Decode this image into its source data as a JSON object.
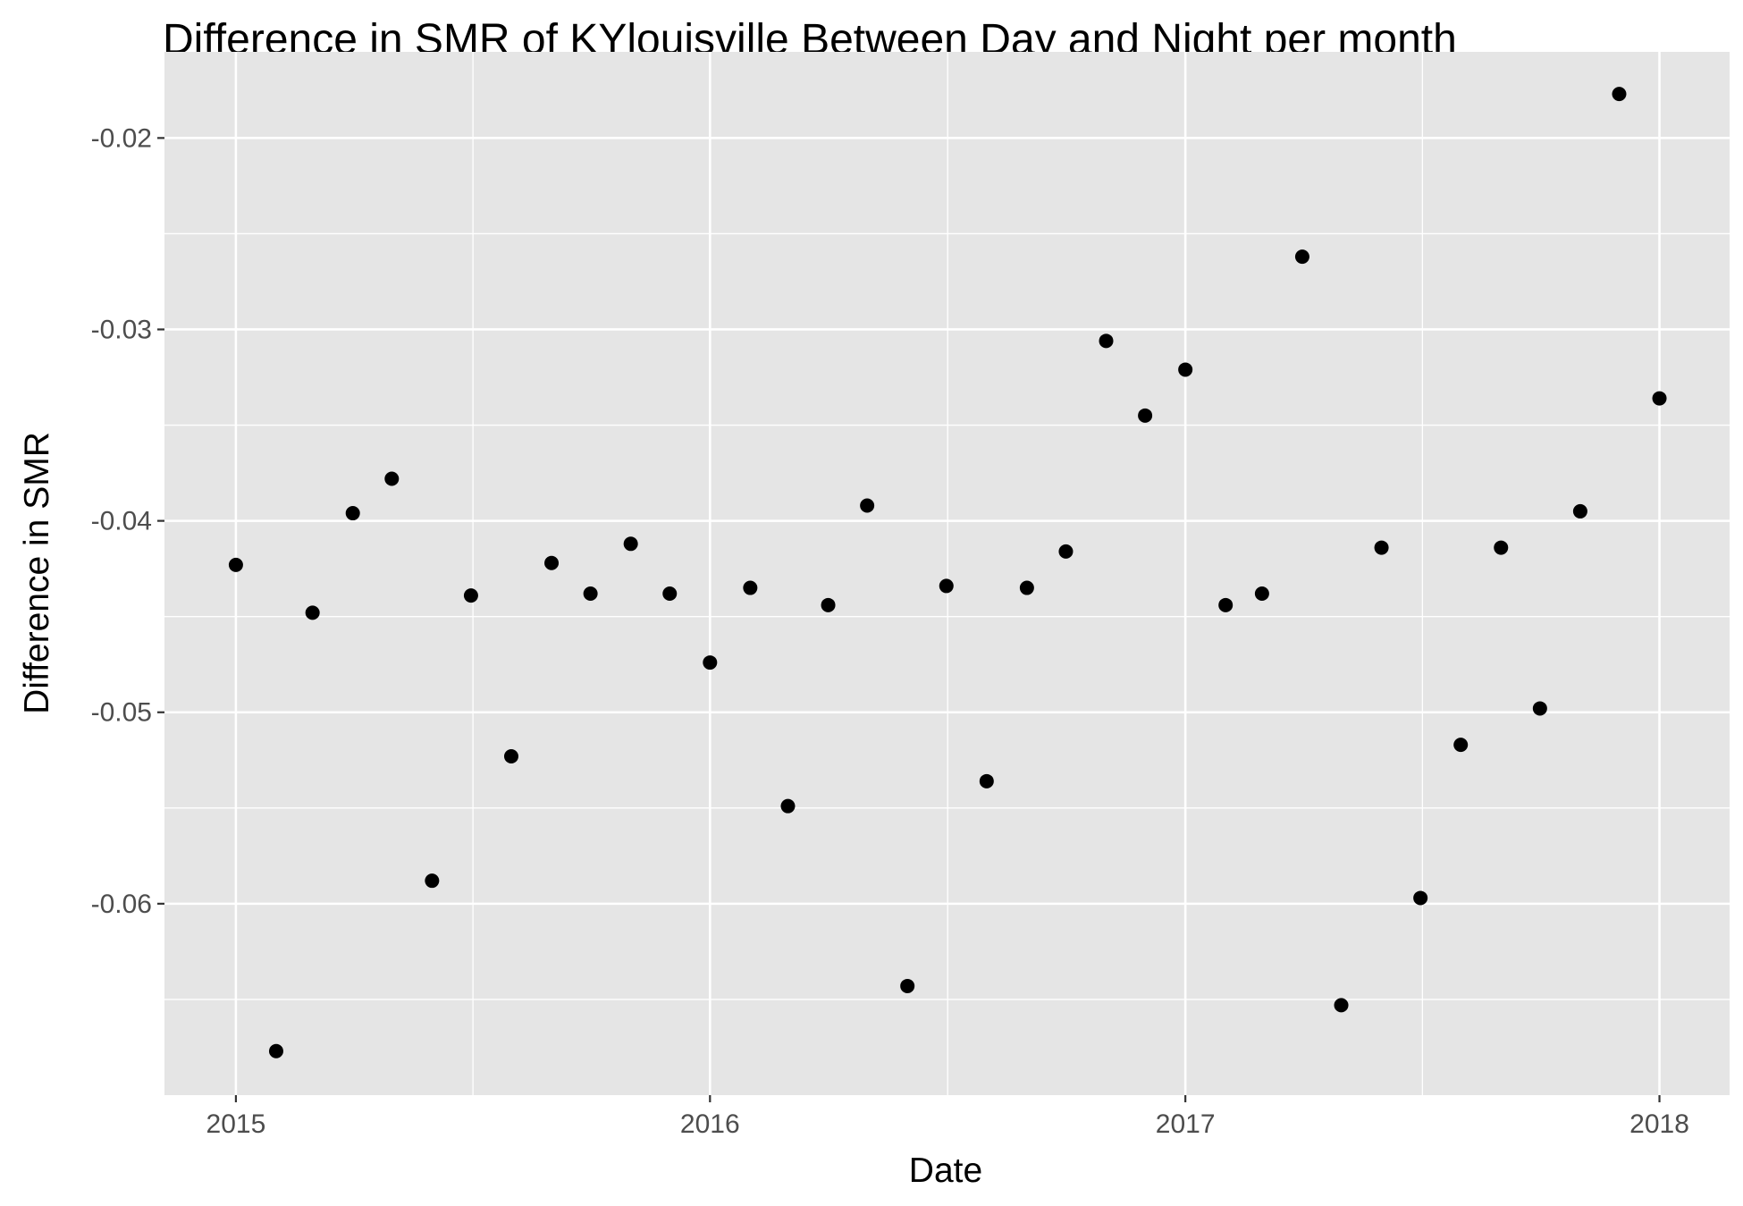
{
  "chart_data": {
    "type": "scatter",
    "title": "Difference in SMR of KYlouisville Between Day and Night per month",
    "xlabel": "Date",
    "ylabel": "Difference in SMR",
    "x_tick_labels": [
      "2015",
      "2016",
      "2017",
      "2018"
    ],
    "x_tick_values": [
      "2015-01-01",
      "2016-01-01",
      "2017-01-01",
      "2018-01-01"
    ],
    "y_tick_labels": [
      "-0.02",
      "-0.03",
      "-0.04",
      "-0.05",
      "-0.06"
    ],
    "y_tick_values": [
      -0.02,
      -0.03,
      -0.04,
      -0.05,
      -0.06
    ],
    "xlim": [
      "2014-11-07",
      "2018-02-24"
    ],
    "ylim": [
      -0.07,
      -0.0155
    ],
    "grid": true,
    "colors": {
      "panel": "#e5e5e5",
      "grid": "#ffffff",
      "point": "#000000",
      "tick_text": "#4d4d4d"
    },
    "points": [
      {
        "x": "2015-01-01",
        "y": -0.0423
      },
      {
        "x": "2015-02-01",
        "y": -0.0677
      },
      {
        "x": "2015-03-01",
        "y": -0.0448
      },
      {
        "x": "2015-04-01",
        "y": -0.0396
      },
      {
        "x": "2015-05-01",
        "y": -0.0378
      },
      {
        "x": "2015-06-01",
        "y": -0.0588
      },
      {
        "x": "2015-07-01",
        "y": -0.0439
      },
      {
        "x": "2015-08-01",
        "y": -0.0523
      },
      {
        "x": "2015-09-01",
        "y": -0.0422
      },
      {
        "x": "2015-10-01",
        "y": -0.0438
      },
      {
        "x": "2015-11-01",
        "y": -0.0412
      },
      {
        "x": "2015-12-01",
        "y": -0.0438
      },
      {
        "x": "2016-01-01",
        "y": -0.0474
      },
      {
        "x": "2016-02-01",
        "y": -0.0435
      },
      {
        "x": "2016-03-01",
        "y": -0.0549
      },
      {
        "x": "2016-04-01",
        "y": -0.0444
      },
      {
        "x": "2016-05-01",
        "y": -0.0392
      },
      {
        "x": "2016-06-01",
        "y": -0.0643
      },
      {
        "x": "2016-07-01",
        "y": -0.0434
      },
      {
        "x": "2016-08-01",
        "y": -0.0536
      },
      {
        "x": "2016-09-01",
        "y": -0.0435
      },
      {
        "x": "2016-10-01",
        "y": -0.0416
      },
      {
        "x": "2016-11-01",
        "y": -0.0306
      },
      {
        "x": "2016-12-01",
        "y": -0.0345
      },
      {
        "x": "2017-01-01",
        "y": -0.0321
      },
      {
        "x": "2017-02-01",
        "y": -0.0444
      },
      {
        "x": "2017-03-01",
        "y": -0.0438
      },
      {
        "x": "2017-04-01",
        "y": -0.0262
      },
      {
        "x": "2017-05-01",
        "y": -0.0653
      },
      {
        "x": "2017-06-01",
        "y": -0.0414
      },
      {
        "x": "2017-07-01",
        "y": -0.0597
      },
      {
        "x": "2017-08-01",
        "y": -0.0517
      },
      {
        "x": "2017-09-01",
        "y": -0.0414
      },
      {
        "x": "2017-10-01",
        "y": -0.0498
      },
      {
        "x": "2017-11-01",
        "y": -0.0395
      },
      {
        "x": "2017-12-01",
        "y": -0.0177
      },
      {
        "x": "2018-01-01",
        "y": -0.0336
      }
    ]
  }
}
